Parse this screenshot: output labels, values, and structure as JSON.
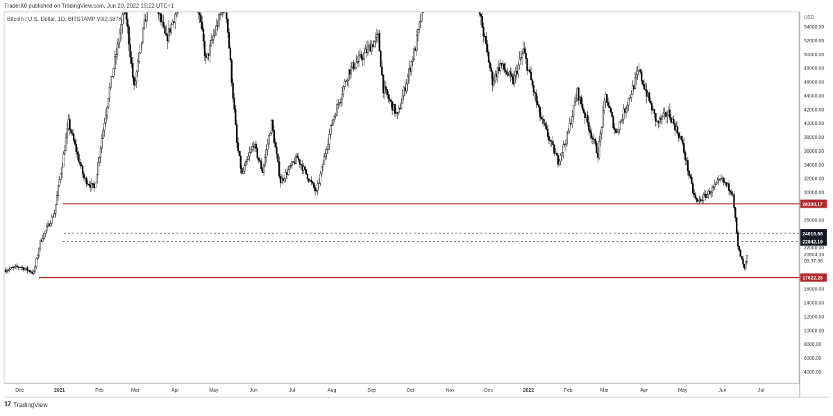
{
  "header": {
    "published_by": "TraderX0 published on TradingView.com, Jun 20, 2022 15:22 UTC+1"
  },
  "symbol_info": {
    "label": "Bitcoin / U.S. Dollar, 1D, BITSTAMP",
    "vol_label": "Vol",
    "vol_value": "2.587K"
  },
  "footer": {
    "logo_text": "TradingView"
  },
  "colors": {
    "candle": "#000000",
    "support_resistance_line": "#b2282e",
    "dashed_line": "#555555",
    "price_label_bg": "#131722",
    "red_label_bg": "#b2282e"
  },
  "chart_data": {
    "type": "candlestick",
    "title": "Bitcoin / U.S. Dollar, 1D, BITSTAMP",
    "currency": "USD",
    "ylim": [
      2500,
      57000
    ],
    "x_ticks": [
      "Dec",
      "2021",
      "Feb",
      "Mar",
      "Apr",
      "May",
      "Jun",
      "Jul",
      "Aug",
      "Sep",
      "Oct",
      "Nov",
      "Dec",
      "2022",
      "Feb",
      "Mar",
      "Apr",
      "May",
      "Jun",
      "Jul"
    ],
    "y_ticks": [
      "54000.00",
      "52000.00",
      "50000.00",
      "48000.00",
      "46000.00",
      "44000.00",
      "42000.00",
      "40000.00",
      "38000.00",
      "36000.00",
      "34000.00",
      "32000.00",
      "30000.00",
      "26000.00",
      "22000.00",
      "16000.00",
      "14000.00",
      "12000.00",
      "10000.00",
      "8000.00",
      "6000.00",
      "4000.00"
    ],
    "horizontal_lines": [
      {
        "value": 28300.17,
        "label": "28300.17",
        "style": "solid"
      },
      {
        "value": 24016.68,
        "label": "24016.68",
        "style": "dashed"
      },
      {
        "value": 22842.19,
        "label": "22842.19",
        "style": "dashed"
      },
      {
        "value": 17622.26,
        "label": "17622.26",
        "style": "solid"
      }
    ],
    "current_price": "20604.33",
    "countdown": "09:37:38",
    "price_path": [
      [
        "2020-11-20",
        18700
      ],
      [
        "2020-12-01",
        19200
      ],
      [
        "2020-12-12",
        18300
      ],
      [
        "2020-12-17",
        22800
      ],
      [
        "2020-12-28",
        27000
      ],
      [
        "2021-01-08",
        40000
      ],
      [
        "2021-01-20",
        32000
      ],
      [
        "2021-01-28",
        30500
      ],
      [
        "2021-02-08",
        44000
      ],
      [
        "2021-02-21",
        57000
      ],
      [
        "2021-02-28",
        45000
      ],
      [
        "2021-03-13",
        60000
      ],
      [
        "2021-03-25",
        52000
      ],
      [
        "2021-04-14",
        63000
      ],
      [
        "2021-04-25",
        49000
      ],
      [
        "2021-05-10",
        58000
      ],
      [
        "2021-05-19",
        37000
      ],
      [
        "2021-05-23",
        32500
      ],
      [
        "2021-06-01",
        37000
      ],
      [
        "2021-06-08",
        33000
      ],
      [
        "2021-06-15",
        40000
      ],
      [
        "2021-06-22",
        31500
      ],
      [
        "2021-07-05",
        35000
      ],
      [
        "2021-07-20",
        29900
      ],
      [
        "2021-08-01",
        40000
      ],
      [
        "2021-08-14",
        47500
      ],
      [
        "2021-08-24",
        49500
      ],
      [
        "2021-09-06",
        52500
      ],
      [
        "2021-09-10",
        45000
      ],
      [
        "2021-09-21",
        41000
      ],
      [
        "2021-10-05",
        51000
      ],
      [
        "2021-10-20",
        66000
      ],
      [
        "2021-11-10",
        68000
      ],
      [
        "2021-11-26",
        54000
      ],
      [
        "2021-12-04",
        46000
      ],
      [
        "2021-12-10",
        48500
      ],
      [
        "2021-12-20",
        46000
      ],
      [
        "2021-12-28",
        50500
      ],
      [
        "2022-01-10",
        41000
      ],
      [
        "2022-01-24",
        34500
      ],
      [
        "2022-01-31",
        38000
      ],
      [
        "2022-02-08",
        44500
      ],
      [
        "2022-02-24",
        35500
      ],
      [
        "2022-03-02",
        44000
      ],
      [
        "2022-03-10",
        38500
      ],
      [
        "2022-03-28",
        47500
      ],
      [
        "2022-04-11",
        40000
      ],
      [
        "2022-04-20",
        41500
      ],
      [
        "2022-04-30",
        37500
      ],
      [
        "2022-05-09",
        30000
      ],
      [
        "2022-05-12",
        28500
      ],
      [
        "2022-05-22",
        30000
      ],
      [
        "2022-05-31",
        31800
      ],
      [
        "2022-06-09",
        30000
      ],
      [
        "2022-06-13",
        22000
      ],
      [
        "2022-06-18",
        18800
      ],
      [
        "2022-06-20",
        20604
      ]
    ]
  }
}
